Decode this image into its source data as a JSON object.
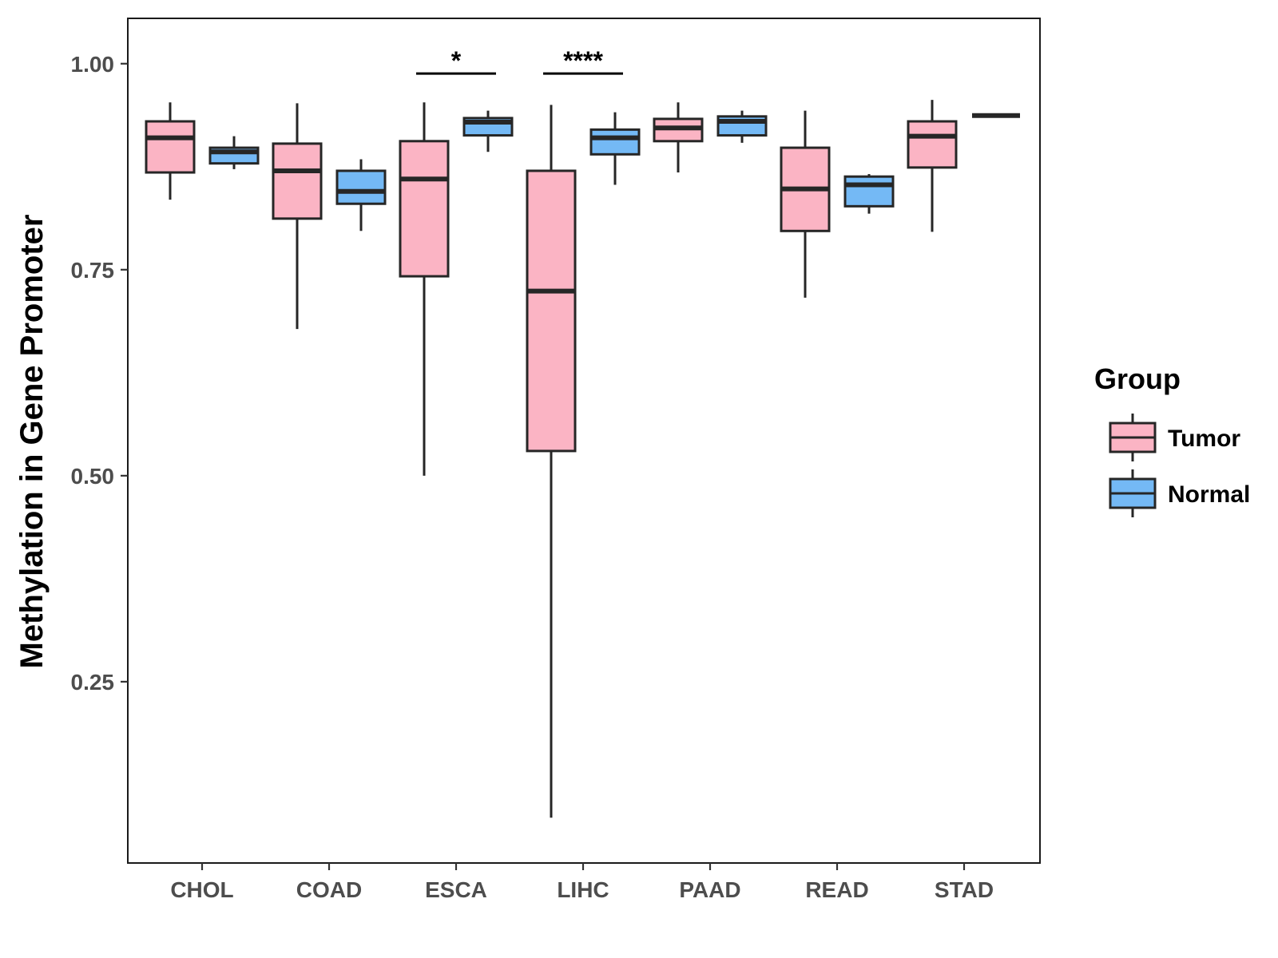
{
  "chart_data": {
    "type": "boxplot",
    "title": "",
    "xlabel": "",
    "ylabel": "Methylation in Gene Promoter",
    "ylim": [
      0.03,
      1.055
    ],
    "yticks": [
      0.25,
      0.5,
      0.75,
      1.0
    ],
    "ytick_labels": [
      "0.25",
      "0.50",
      "0.75",
      "1.00"
    ],
    "grid": false,
    "legend": {
      "title": "Group",
      "position": "right",
      "entries": [
        {
          "name": "Tumor",
          "color": "#fbb4c4"
        },
        {
          "name": "Normal",
          "color": "#74b9f5"
        }
      ]
    },
    "categories": [
      "CHOL",
      "COAD",
      "ESCA",
      "LIHC",
      "PAAD",
      "READ",
      "STAD"
    ],
    "series": [
      {
        "name": "Tumor",
        "color": "#fbb4c4",
        "boxes": [
          {
            "min": 0.835,
            "q1": 0.868,
            "median": 0.91,
            "q3": 0.93,
            "max": 0.953
          },
          {
            "min": 0.678,
            "q1": 0.812,
            "median": 0.87,
            "q3": 0.903,
            "max": 0.952
          },
          {
            "min": 0.5,
            "q1": 0.742,
            "median": 0.86,
            "q3": 0.906,
            "max": 0.953
          },
          {
            "min": 0.085,
            "q1": 0.53,
            "median": 0.724,
            "q3": 0.87,
            "max": 0.95
          },
          {
            "min": 0.868,
            "q1": 0.906,
            "median": 0.922,
            "q3": 0.933,
            "max": 0.953
          },
          {
            "min": 0.716,
            "q1": 0.797,
            "median": 0.848,
            "q3": 0.898,
            "max": 0.943
          },
          {
            "min": 0.796,
            "q1": 0.874,
            "median": 0.912,
            "q3": 0.93,
            "max": 0.956
          }
        ]
      },
      {
        "name": "Normal",
        "color": "#74b9f5",
        "boxes": [
          {
            "min": 0.872,
            "q1": 0.879,
            "median": 0.893,
            "q3": 0.898,
            "max": 0.912
          },
          {
            "min": 0.797,
            "q1": 0.83,
            "median": 0.845,
            "q3": 0.87,
            "max": 0.884
          },
          {
            "min": 0.893,
            "q1": 0.913,
            "median": 0.929,
            "q3": 0.934,
            "max": 0.943
          },
          {
            "min": 0.853,
            "q1": 0.89,
            "median": 0.91,
            "q3": 0.92,
            "max": 0.941
          },
          {
            "min": 0.904,
            "q1": 0.913,
            "median": 0.93,
            "q3": 0.936,
            "max": 0.943
          },
          {
            "min": 0.818,
            "q1": 0.827,
            "median": 0.853,
            "q3": 0.863,
            "max": 0.866
          },
          {
            "min": 0.937,
            "q1": 0.937,
            "median": 0.937,
            "q3": 0.937,
            "max": 0.937
          }
        ]
      }
    ],
    "annotations": [
      {
        "category": "ESCA",
        "label": "*",
        "y": 0.988
      },
      {
        "category": "LIHC",
        "label": "****",
        "y": 0.988
      }
    ]
  }
}
